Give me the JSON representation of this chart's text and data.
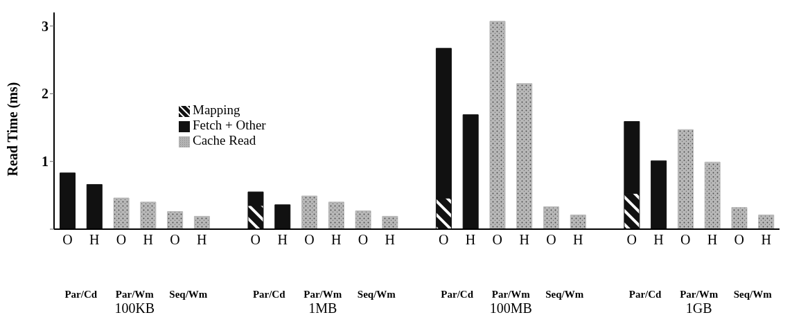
{
  "chart_data": {
    "type": "bar",
    "stacked": true,
    "ylabel": "Read Time (ms)",
    "categories": [
      "O",
      "H",
      "O",
      "H",
      "O",
      "H",
      null,
      "O",
      "H",
      "O",
      "H",
      "O",
      "H",
      null,
      "O",
      "H",
      "O",
      "H",
      "O",
      "H",
      null,
      "O",
      "H",
      "O",
      "H",
      "O",
      "H"
    ],
    "series": [
      {
        "name": "Mapping",
        "color": "#111111",
        "values": [
          null,
          null,
          null,
          null,
          null,
          null,
          null,
          0.35,
          null,
          null,
          null,
          null,
          null,
          null,
          0.46,
          null,
          null,
          null,
          null,
          null,
          null,
          0.53,
          null,
          null,
          null,
          null,
          null
        ]
      },
      {
        "name": "Fetch + Other",
        "color": "#111111",
        "values": [
          0.83,
          0.66,
          null,
          null,
          null,
          null,
          null,
          0.2,
          0.36,
          null,
          null,
          null,
          null,
          null,
          2.21,
          1.69,
          null,
          null,
          null,
          null,
          null,
          1.06,
          1.01,
          null,
          null,
          null,
          null
        ]
      },
      {
        "name": "Cache Read",
        "color": "#b8b8b8",
        "values": [
          null,
          null,
          0.46,
          0.4,
          0.26,
          0.19,
          null,
          null,
          null,
          0.49,
          0.4,
          0.27,
          0.19,
          null,
          null,
          null,
          3.07,
          2.15,
          0.33,
          0.21,
          null,
          null,
          null,
          1.47,
          0.99,
          0.32,
          0.21
        ]
      }
    ],
    "ylim": [
      0,
      3.2
    ],
    "yticks": [
      {
        "value": 0,
        "label": null
      },
      1,
      2,
      3
    ],
    "grid": false,
    "legend": "left",
    "annotations": [
      "Par/Cd",
      "Par/Wm",
      "Seq/Wm",
      "Par/Cd",
      "Par/Wm",
      "Seq/Wm",
      "Par/Cd",
      "Par/Wm",
      "Seq/Wm",
      "Par/Cd",
      "Par/Wm",
      "Seq/Wm",
      "100KB",
      "1MB",
      "100MB",
      "1GB"
    ]
  }
}
